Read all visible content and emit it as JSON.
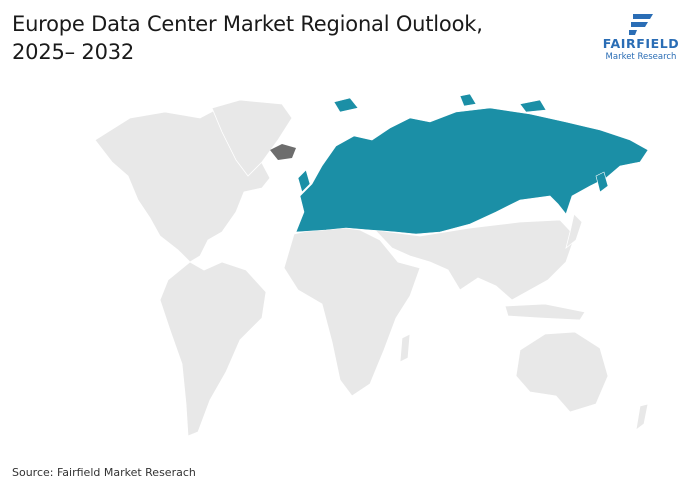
{
  "header": {
    "title_lines": [
      "Europe Data Center Market Regional Outlook,",
      "2025– 2032"
    ]
  },
  "logo": {
    "name": "FAIRFIELD",
    "tagline": "Market Research"
  },
  "footer": {
    "source": "Source: Fairfield Market Reserach"
  }
}
